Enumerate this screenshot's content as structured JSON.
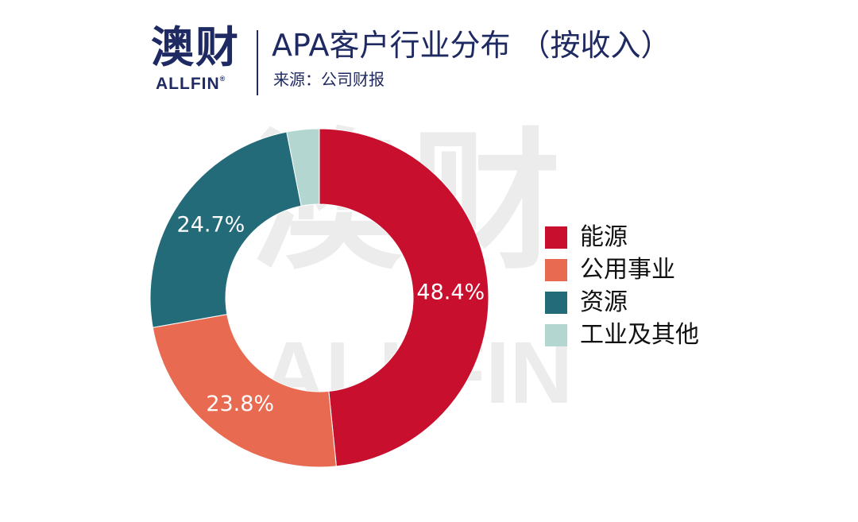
{
  "header": {
    "logo_text": "澳财",
    "logo_subtext": "ALLFIN",
    "logo_mark": "®",
    "title": "APA客户行业分布 （按收入）",
    "source": "来源：公司财报"
  },
  "watermark": {
    "big": "澳财",
    "small": "ALLFIN"
  },
  "chart_data": {
    "type": "pie",
    "donut": true,
    "title": "APA客户行业分布 （按收入）",
    "subtitle": "来源：公司财报",
    "legend_position": "right",
    "series": [
      {
        "name": "能源",
        "value": 48.4,
        "label": "48.4%",
        "color": "#c8102e"
      },
      {
        "name": "公用事业",
        "value": 23.8,
        "label": "23.8%",
        "color": "#e86a50"
      },
      {
        "name": "资源",
        "value": 24.7,
        "label": "24.7%",
        "color": "#236b78"
      },
      {
        "name": "工业及其他",
        "value": 3.1,
        "label": "",
        "color": "#b3d6d1"
      }
    ]
  }
}
